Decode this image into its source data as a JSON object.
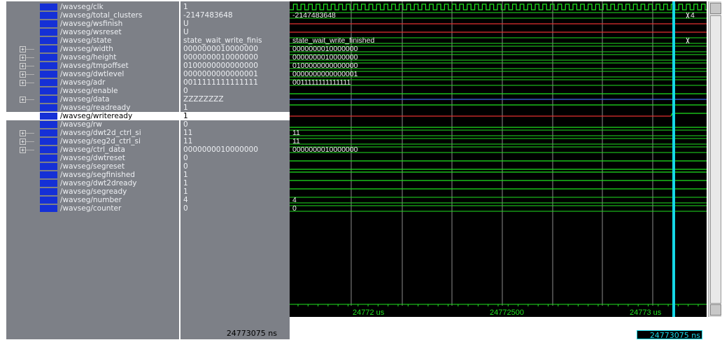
{
  "signals": [
    {
      "name": "/wavseg/clk",
      "value": "1",
      "wave": "",
      "type": "clock",
      "expand": false
    },
    {
      "name": "/wavseg/total_clusters",
      "value": "-2147483648",
      "wave": "-2147483648",
      "type": "bus",
      "expand": false,
      "end_label": "4"
    },
    {
      "name": "/wavseg/wsfinish",
      "value": "U",
      "wave": "",
      "type": "red",
      "expand": false
    },
    {
      "name": "/wavseg/wsreset",
      "value": "U",
      "wave": "",
      "type": "red",
      "expand": false
    },
    {
      "name": "/wavseg/state",
      "value": "state_wait_write_finis",
      "wave": "state_wait_write_finished",
      "type": "bus",
      "expand": false,
      "end_label": ""
    },
    {
      "name": "/wavseg/width",
      "value": "0000000010000000",
      "wave": "0000000010000000",
      "type": "bus",
      "expand": true
    },
    {
      "name": "/wavseg/height",
      "value": "0000000010000000",
      "wave": "0000000010000000",
      "type": "bus",
      "expand": true
    },
    {
      "name": "/wavseg/tmpoffset",
      "value": "0100000000000000",
      "wave": "0100000000000000",
      "type": "bus",
      "expand": true
    },
    {
      "name": "/wavseg/dwtlevel",
      "value": "0000000000000001",
      "wave": "0000000000000001",
      "type": "bus",
      "expand": true
    },
    {
      "name": "/wavseg/adr",
      "value": "0011111111111111",
      "wave": "0011111111111111",
      "type": "bus",
      "expand": true
    },
    {
      "name": "/wavseg/enable",
      "value": "0",
      "wave": "",
      "type": "low",
      "expand": false
    },
    {
      "name": "/wavseg/data",
      "value": "ZZZZZZZZ",
      "wave": "",
      "type": "blue",
      "expand": true
    },
    {
      "name": "/wavseg/readready",
      "value": "1",
      "wave": "",
      "type": "high",
      "expand": false
    },
    {
      "name": "/wavseg/writeready",
      "value": "1",
      "wave": "",
      "type": "redtrans",
      "expand": false,
      "selected": true
    },
    {
      "name": "/wavseg/rw",
      "value": "0",
      "wave": "",
      "type": "low",
      "expand": false
    },
    {
      "name": "/wavseg/dwt2d_ctrl_si",
      "value": "11",
      "wave": "11",
      "type": "bus",
      "expand": true
    },
    {
      "name": "/wavseg/seg2d_ctrl_si",
      "value": "11",
      "wave": "11",
      "type": "bus",
      "expand": true
    },
    {
      "name": "/wavseg/ctrl_data",
      "value": "0000000010000000",
      "wave": "0000000010000000",
      "type": "bus",
      "expand": true
    },
    {
      "name": "/wavseg/dwtreset",
      "value": "0",
      "wave": "",
      "type": "low",
      "expand": false
    },
    {
      "name": "/wavseg/segreset",
      "value": "0",
      "wave": "",
      "type": "low",
      "expand": false
    },
    {
      "name": "/wavseg/segfinished",
      "value": "1",
      "wave": "",
      "type": "high",
      "expand": false
    },
    {
      "name": "/wavseg/dwt2dready",
      "value": "1",
      "wave": "",
      "type": "high",
      "expand": false
    },
    {
      "name": "/wavseg/segready",
      "value": "1",
      "wave": "",
      "type": "high",
      "expand": false
    },
    {
      "name": "/wavseg/number",
      "value": "4",
      "wave": "4",
      "type": "bus",
      "expand": false
    },
    {
      "name": "/wavseg/counter",
      "value": "0",
      "wave": "0",
      "type": "bus",
      "expand": false
    }
  ],
  "timeline": {
    "tick_labels": [
      "24772 us",
      "24772500",
      "24773 us"
    ],
    "now": "24773075 ns",
    "cursor": "24773075 ns"
  },
  "colors": {
    "wave_high": "#1fe21f",
    "wave_red": "#e23030",
    "wave_blue": "#3a6cf0",
    "bus_text": "#f0f0f0",
    "cursor": "#16d7e6",
    "grid": "#8c8c8c"
  }
}
